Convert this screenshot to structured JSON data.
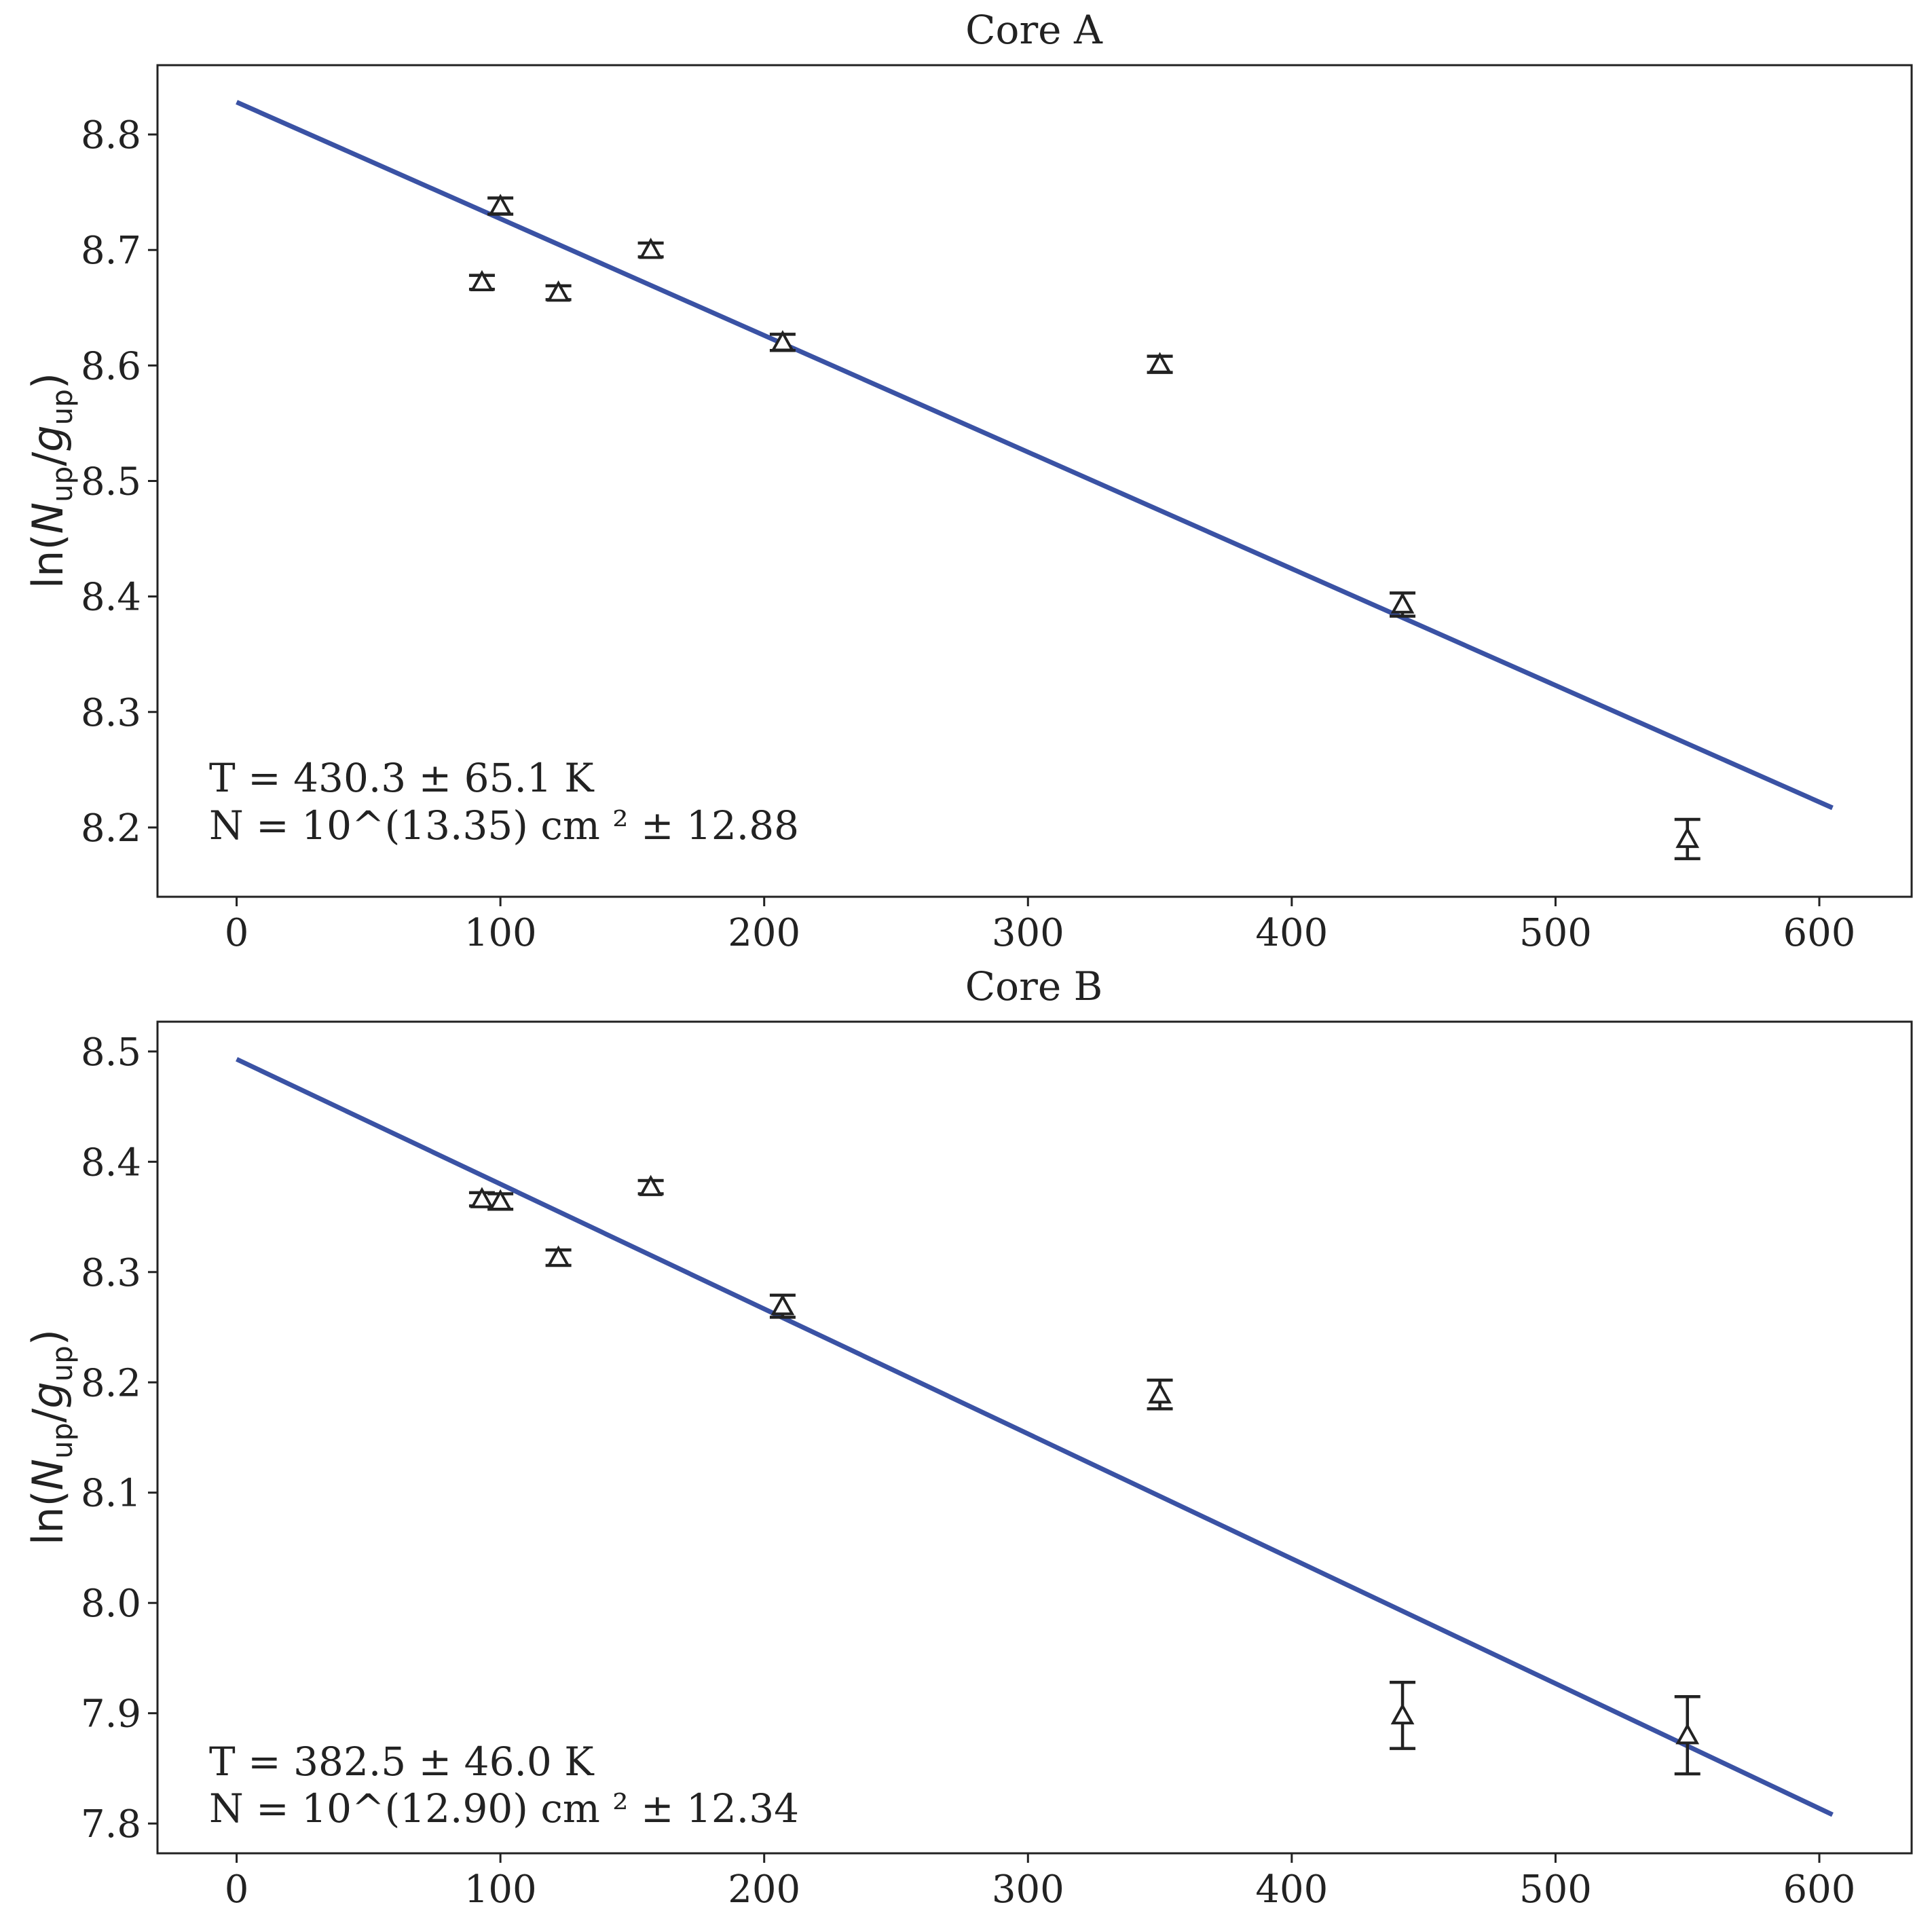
{
  "chart_data": [
    {
      "type": "scatter",
      "title": "Core A",
      "xlabel": "",
      "ylabel": "ln(N_up/g_up)",
      "ylabel_parts": {
        "prefix": "ln(",
        "N": "N",
        "N_sub": "up",
        "slash": "/",
        "g": "g",
        "g_sub": "up",
        "suffix": ")"
      },
      "xlim": [
        -30,
        635
      ],
      "ylim": [
        8.14,
        8.86
      ],
      "xticks": [
        0,
        100,
        200,
        300,
        400,
        500,
        600
      ],
      "xtick_labels": [
        "0",
        "100",
        "200",
        "300",
        "400",
        "500",
        "600"
      ],
      "yticks": [
        8.2,
        8.3,
        8.4,
        8.5,
        8.6,
        8.7,
        8.8
      ],
      "ytick_labels": [
        "8.2",
        "8.3",
        "8.4",
        "8.5",
        "8.6",
        "8.7",
        "8.8"
      ],
      "points": {
        "x": [
          93,
          100,
          122,
          157,
          207,
          350,
          442,
          550
        ],
        "y": [
          8.672,
          8.738,
          8.663,
          8.7,
          8.62,
          8.601,
          8.393,
          8.19
        ],
        "err": [
          0.006,
          0.007,
          0.006,
          0.006,
          0.007,
          0.007,
          0.01,
          0.017
        ],
        "marker": "triangle-up"
      },
      "fit_line": {
        "x": [
          0,
          605
        ],
        "y": [
          8.828,
          8.217
        ],
        "color": "#3a52a4"
      },
      "annotation": [
        "T = 430.3 ± 65.1 K",
        "N = 10^(13.35) cm ² ± 12.88"
      ],
      "grid": false
    },
    {
      "type": "scatter",
      "title": "Core B",
      "xlabel": "",
      "ylabel": "ln(N_up/g_up)",
      "ylabel_parts": {
        "prefix": "ln(",
        "N": "N",
        "N_sub": "up",
        "slash": "/",
        "g": "g",
        "g_sub": "up",
        "suffix": ")"
      },
      "xlim": [
        -30,
        635
      ],
      "ylim": [
        7.773,
        8.527
      ],
      "xticks": [
        0,
        100,
        200,
        300,
        400,
        500,
        600
      ],
      "xtick_labels": [
        "0",
        "100",
        "200",
        "300",
        "400",
        "500",
        "600"
      ],
      "yticks": [
        7.8,
        7.9,
        8.0,
        8.1,
        8.2,
        8.3,
        8.4,
        8.5
      ],
      "ytick_labels": [
        "7.8",
        "7.9",
        "8.0",
        "8.1",
        "8.2",
        "8.3",
        "8.4",
        "8.5"
      ],
      "points": {
        "x": [
          93,
          100,
          122,
          157,
          207,
          350,
          442,
          550
        ],
        "y": [
          8.366,
          8.364,
          8.313,
          8.377,
          8.269,
          8.189,
          7.898,
          7.88
        ],
        "err": [
          0.006,
          0.007,
          0.007,
          0.006,
          0.01,
          0.013,
          0.03,
          0.035
        ],
        "marker": "triangle-up"
      },
      "fit_line": {
        "x": [
          0,
          605
        ],
        "y": [
          8.493,
          7.808
        ],
        "color": "#3a52a4"
      },
      "annotation": [
        "T = 382.5 ± 46.0 K",
        "N = 10^(12.90) cm ² ± 12.34"
      ],
      "grid": false
    }
  ]
}
